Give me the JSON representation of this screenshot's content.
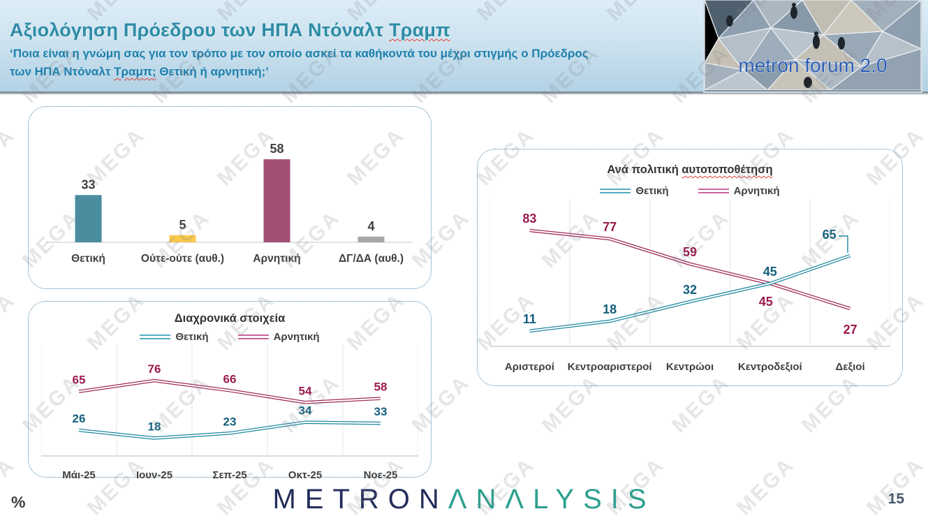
{
  "watermark": {
    "text": "MEGA"
  },
  "header": {
    "title_pre": "Αξιολόγηση Πρόεδρου των ΗΠΑ Ντόναλτ ",
    "title_marked": "Τραμπ",
    "subtitle_line1": "‘Ποια είναι η γνώμη σας για τον τρόπο με τον οποίο ασκεί τα καθήκοντά του μέχρι στιγμής ο Πρόεδρος",
    "subtitle_line2_pre": "των ΗΠΑ Ντόναλτ ",
    "subtitle_line2_marked": "Τραμπ;",
    "subtitle_line2_post": " Θετική ή αρνητική;’",
    "photo_logo_text": "metron forum 2.0"
  },
  "colors": {
    "header_title": "#2E8CA6",
    "header_subtitle": "#1E80AD",
    "positive_line": "#1E87A0",
    "negative_line": "#A02A5A",
    "positive_label": "#14607C",
    "negative_label": "#9B1A4F",
    "neutral_yellow": "#FBC84C",
    "dkda_gray": "#A7A7A7",
    "bar_teal": "#4A8D9E",
    "bar_maroon": "#A34E74",
    "axis_label": "#3F3F3F",
    "brand_navy": "#232D5C",
    "brand_teal": "#2BA08E",
    "squiggle_red": "#E03C31"
  },
  "chart_data": [
    {
      "type": "bar",
      "title": "",
      "categories": [
        "Θετική",
        "Ούτε-ούτε (αυθ.)",
        "Αρνητική",
        "ΔΓ/ΔΑ (αυθ.)"
      ],
      "values": [
        33,
        5,
        58,
        4
      ],
      "bar_colors": [
        "#4A8D9E",
        "#FBC84C",
        "#A34E74",
        "#A7A7A7"
      ],
      "ylim": [
        0,
        100
      ],
      "grid": false,
      "legend": false
    },
    {
      "type": "line",
      "title": "Διαχρονικά στοιχεία",
      "categories": [
        "Μάι-25",
        "Ιουν-25",
        "Σεπ-25",
        "Οκτ-25",
        "Νοε-25"
      ],
      "series": [
        {
          "name": "Θετική",
          "color": "#1E87A0",
          "label_color": "#14607C",
          "values": [
            26,
            18,
            23,
            34,
            33
          ]
        },
        {
          "name": "Αρνητική",
          "color": "#A02A5A",
          "label_color": "#9B1A4F",
          "values": [
            65,
            76,
            66,
            54,
            58
          ]
        }
      ],
      "ylim": [
        0,
        100
      ],
      "grid": true,
      "legend_position": "top"
    },
    {
      "type": "line",
      "title": "Ανά πολιτική αυτοτοποθέτηση",
      "title_pre": "Ανά πολιτική ",
      "title_marked": "αυτοτοποθέτηση",
      "categories": [
        "Αριστεροί",
        "Κεντροαριστεροί",
        "Κεντρώοι",
        "Κεντροδεξιοί",
        "Δεξιοί"
      ],
      "series": [
        {
          "name": "Θετική",
          "color": "#1E87A0",
          "label_color": "#14607C",
          "values": [
            11,
            18,
            32,
            45,
            65
          ]
        },
        {
          "name": "Αρνητική",
          "color": "#A02A5A",
          "label_color": "#9B1A4F",
          "values": [
            83,
            77,
            59,
            45,
            27
          ]
        }
      ],
      "ylim": [
        0,
        100
      ],
      "grid": true,
      "legend_position": "top"
    }
  ],
  "footer": {
    "brand_metron": "METRON",
    "brand_analysis": "ΛNΛLYSIS",
    "percent_label": "%",
    "page_number": "15"
  }
}
